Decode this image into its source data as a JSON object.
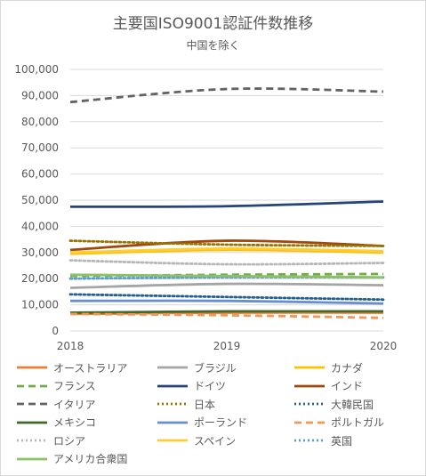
{
  "chart_data": {
    "type": "line",
    "title": "主要国ISO9001認証件数推移",
    "subtitle": "中国を除く",
    "x": [
      "2018",
      "2019",
      "2020"
    ],
    "ylim": [
      0,
      100000
    ],
    "yticks": [
      "0",
      "10,000",
      "20,000",
      "30,000",
      "40,000",
      "50,000",
      "60,000",
      "70,000",
      "80,000",
      "90,000",
      "100,000"
    ],
    "grid": true,
    "legend_position": "bottom",
    "series": [
      {
        "name": "オーストラリア",
        "values": [
          6500,
          7000,
          7000
        ],
        "color": "#ED7D31",
        "dash": "solid"
      },
      {
        "name": "ブラジル",
        "values": [
          16500,
          18000,
          17500
        ],
        "color": "#A5A5A5",
        "dash": "solid"
      },
      {
        "name": "カナダ",
        "values": [
          29500,
          31000,
          30000
        ],
        "color": "#FFC000",
        "dash": "solid"
      },
      {
        "name": "フランス",
        "values": [
          21000,
          21500,
          21800
        ],
        "color": "#70AD47",
        "dash": "dash"
      },
      {
        "name": "ドイツ",
        "values": [
          47500,
          47700,
          49500
        ],
        "color": "#264478",
        "dash": "solid"
      },
      {
        "name": "インド",
        "values": [
          31000,
          34500,
          32500
        ],
        "color": "#9E480E",
        "dash": "solid"
      },
      {
        "name": "イタリア",
        "values": [
          87500,
          92500,
          91500
        ],
        "color": "#636363",
        "dash": "dash"
      },
      {
        "name": "日本",
        "values": [
          34500,
          33000,
          32500
        ],
        "color": "#997300",
        "dash": "dot"
      },
      {
        "name": "大韓民国",
        "values": [
          14000,
          13000,
          12000
        ],
        "color": "#255E91",
        "dash": "dot"
      },
      {
        "name": "メキシコ",
        "values": [
          7000,
          7500,
          7500
        ],
        "color": "#43682B",
        "dash": "solid"
      },
      {
        "name": "ポーランド",
        "values": [
          11500,
          11500,
          10500
        ],
        "color": "#698ED0",
        "dash": "solid"
      },
      {
        "name": "ポルトガル",
        "values": [
          6500,
          6000,
          5000
        ],
        "color": "#F1975A",
        "dash": "dash"
      },
      {
        "name": "ロシア",
        "values": [
          27000,
          25500,
          26000
        ],
        "color": "#B7B7B7",
        "dash": "dot"
      },
      {
        "name": "スペイン",
        "values": [
          30000,
          31500,
          30500
        ],
        "color": "#FFCD33",
        "dash": "solid"
      },
      {
        "name": "英国",
        "values": [
          20000,
          20500,
          20500
        ],
        "color": "#5B9BD5",
        "dash": "dot"
      },
      {
        "name": "アメリカ合衆国",
        "values": [
          21500,
          21000,
          20500
        ],
        "color": "#8CC168",
        "dash": "solid"
      }
    ]
  }
}
